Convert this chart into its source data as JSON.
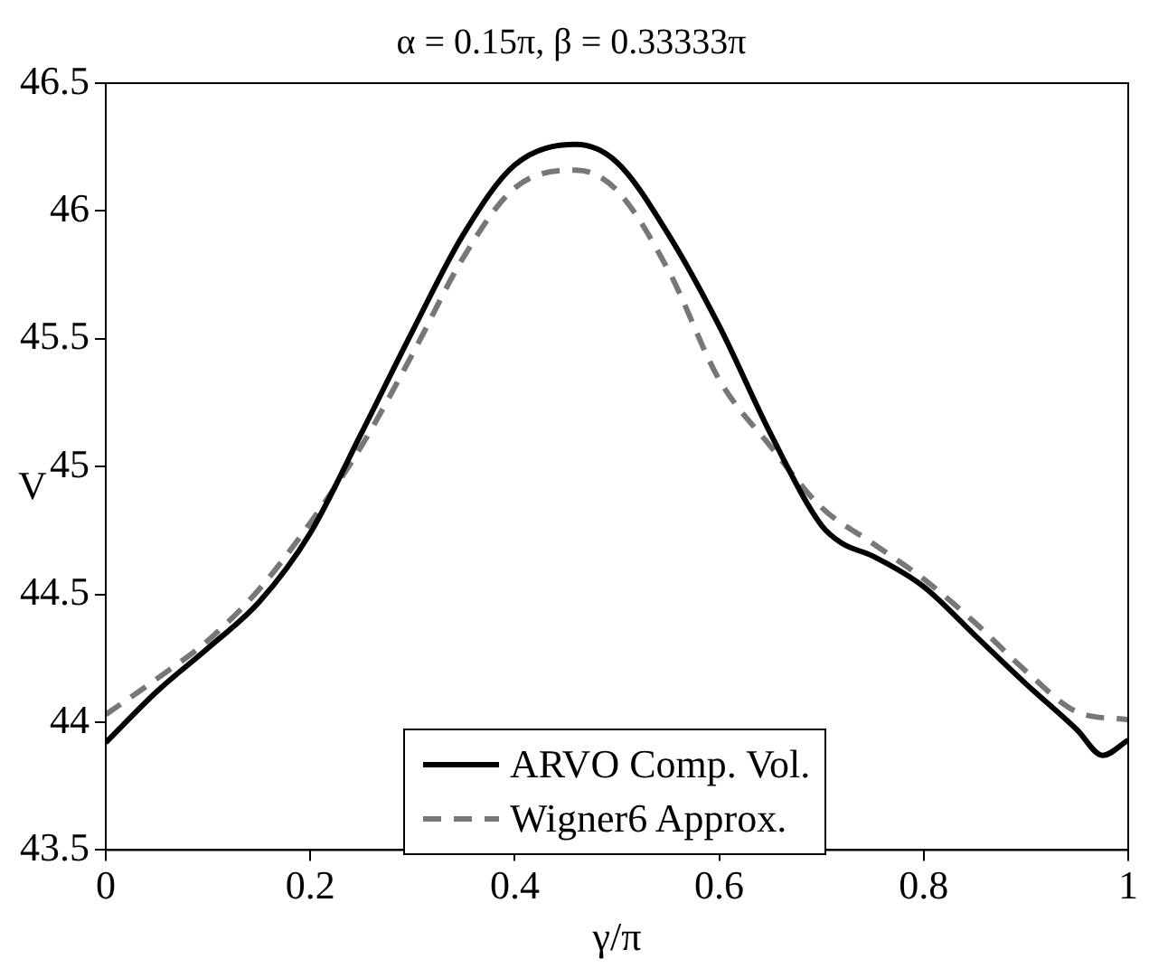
{
  "chart_data": {
    "type": "line",
    "title": "α = 0.15π, β = 0.33333π",
    "xlabel": "γ/π",
    "ylabel": "V",
    "xlim": [
      0,
      1
    ],
    "xticks": [
      0,
      0.2,
      0.4,
      0.6,
      0.8,
      1
    ],
    "ylim": [
      43.5,
      46.5
    ],
    "yticks": [
      43.5,
      44,
      44.5,
      45,
      45.5,
      46,
      46.5
    ],
    "grid": false,
    "legend": "bottom",
    "marker": "none",
    "series": [
      {
        "name": "ARVO Comp. Vol.",
        "color": "#000000",
        "line_style": "solid",
        "x": [
          0,
          0.05,
          0.1,
          0.15,
          0.2,
          0.25,
          0.3,
          0.35,
          0.4,
          0.46,
          0.5,
          0.55,
          0.6,
          0.65,
          0.7,
          0.72,
          0.75,
          0.8,
          0.85,
          0.9,
          0.95,
          0.975,
          1
        ],
        "values": [
          43.92,
          44.12,
          44.29,
          44.47,
          44.74,
          45.13,
          45.53,
          45.91,
          46.18,
          46.26,
          46.19,
          45.91,
          45.55,
          45.13,
          44.77,
          44.7,
          44.65,
          44.53,
          44.34,
          44.15,
          43.97,
          43.87,
          43.93
        ]
      },
      {
        "name": "Wigner6 Approx.",
        "color": "#777777",
        "line_style": "dashed",
        "x": [
          0,
          0.05,
          0.1,
          0.15,
          0.2,
          0.25,
          0.3,
          0.35,
          0.4,
          0.46,
          0.5,
          0.55,
          0.6,
          0.65,
          0.7,
          0.75,
          0.8,
          0.85,
          0.9,
          0.95,
          1
        ],
        "values": [
          44.03,
          44.17,
          44.32,
          44.52,
          44.78,
          45.08,
          45.44,
          45.82,
          46.09,
          46.16,
          46.08,
          45.77,
          45.34,
          45.08,
          44.84,
          44.7,
          44.56,
          44.39,
          44.2,
          44.04,
          44.01
        ]
      }
    ]
  }
}
